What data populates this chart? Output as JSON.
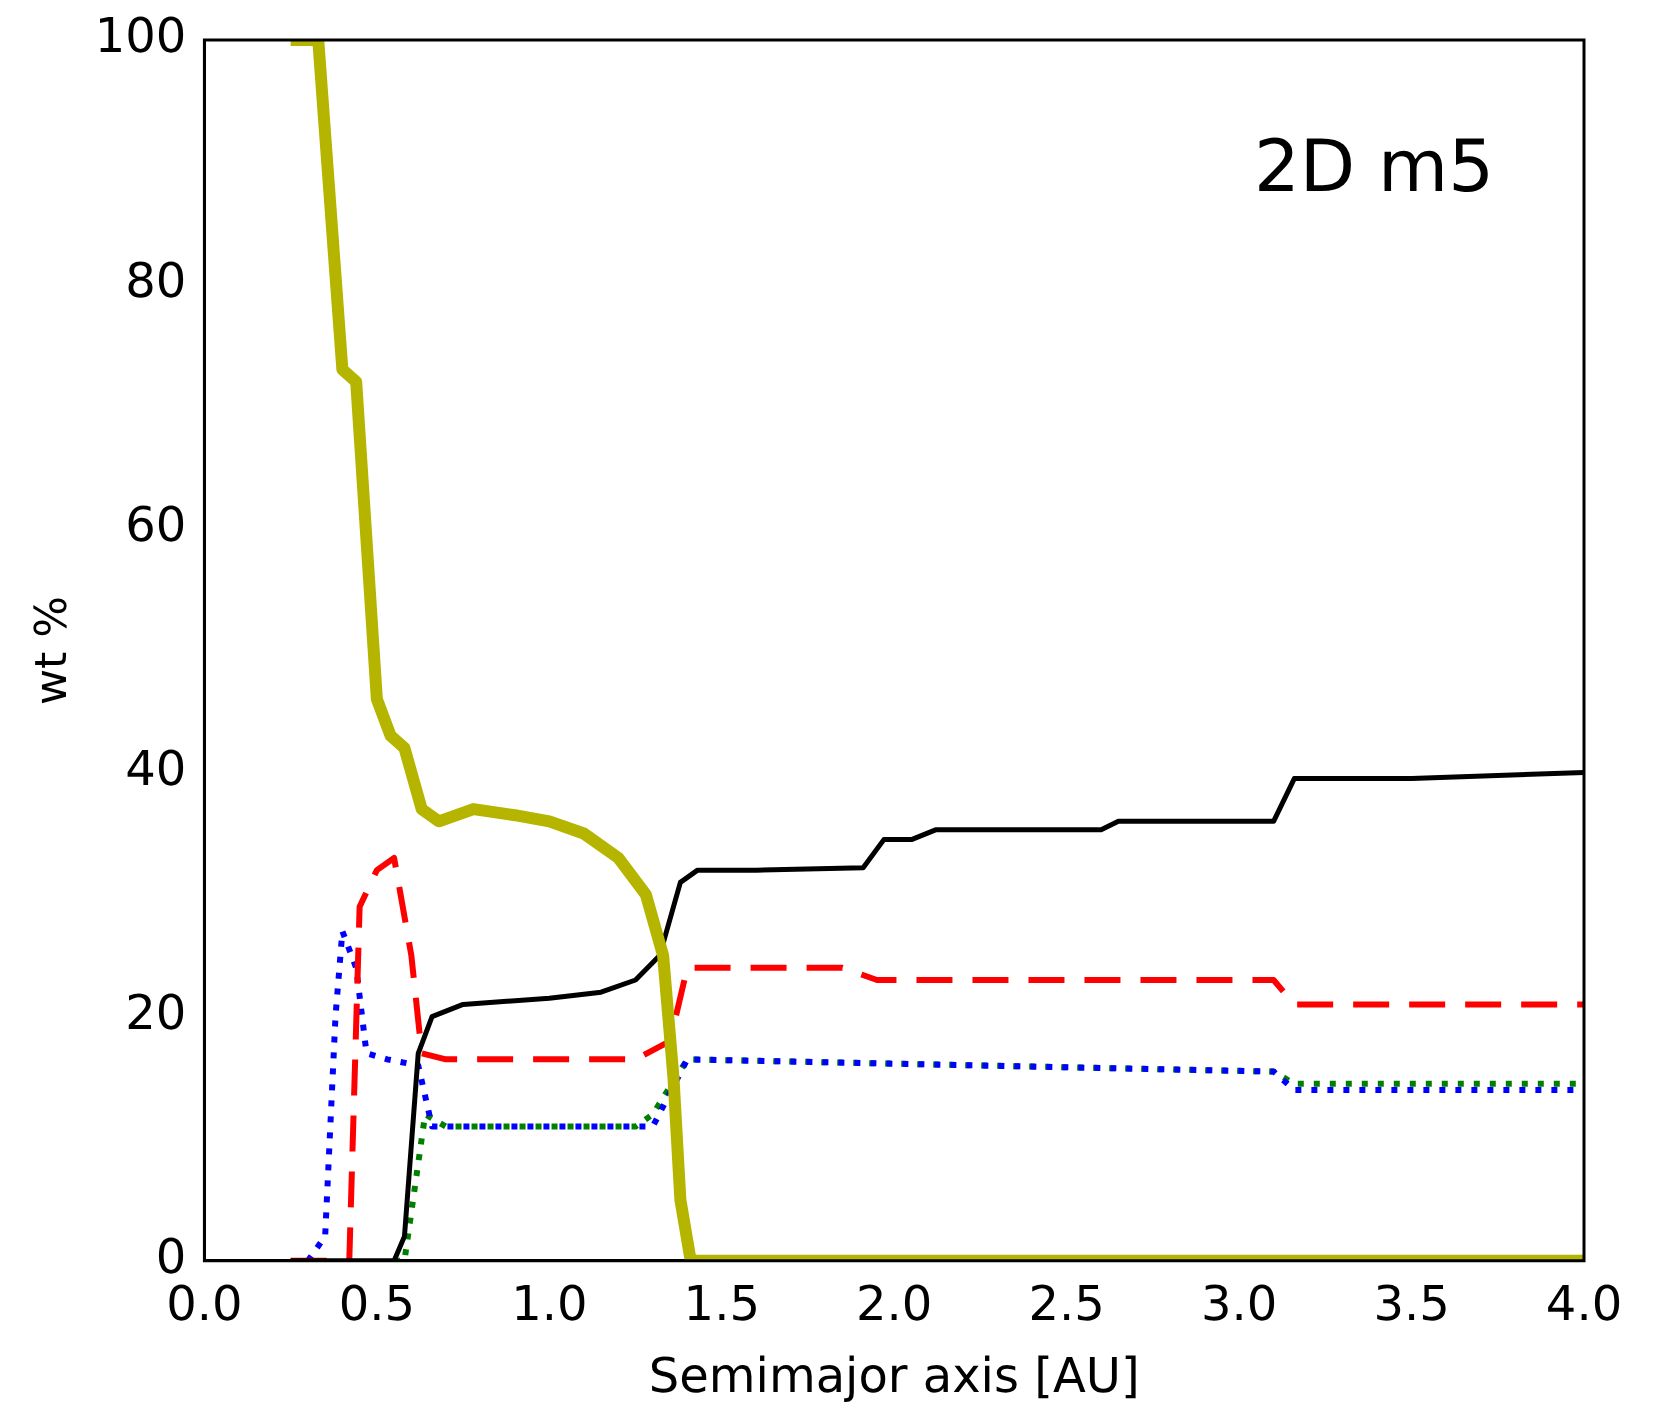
{
  "chart_data": {
    "type": "line",
    "xlabel": "Semimajor axis [AU]",
    "ylabel": "wt %",
    "annotations": [
      "2D m5"
    ],
    "xlim": [
      0,
      4
    ],
    "xticks": [
      {
        "value": 0,
        "label": "0.0"
      },
      {
        "value": 0.5,
        "label": "0.5"
      },
      {
        "value": 1,
        "label": "1.0"
      },
      {
        "value": 1.5,
        "label": "1.5"
      },
      {
        "value": 2,
        "label": "2.0"
      },
      {
        "value": 2.5,
        "label": "2.5"
      },
      {
        "value": 3,
        "label": "3.0"
      },
      {
        "value": 3.5,
        "label": "3.5"
      },
      {
        "value": 4,
        "label": "4.0"
      }
    ],
    "ylim": [
      0,
      100
    ],
    "yticks": [
      0,
      20,
      40,
      60,
      80,
      100
    ],
    "grid": false,
    "legend": false,
    "marker": "none",
    "series": [
      {
        "color": "#b5b500",
        "line_style": "solid",
        "x": [
          0.25,
          0.33,
          0.4,
          0.44,
          0.5,
          0.54,
          0.58,
          0.63,
          0.68,
          0.78,
          0.9,
          1.0,
          1.1,
          1.2,
          1.28,
          1.33,
          1.36,
          1.38,
          1.41,
          4.0
        ],
        "values": [
          100,
          100,
          73,
          72,
          46,
          43,
          42,
          37,
          36,
          37,
          36.5,
          36,
          35,
          33,
          30,
          25,
          15,
          5,
          0,
          0
        ]
      },
      {
        "color": "#000000",
        "line_style": "solid",
        "x": [
          0.25,
          0.55,
          0.58,
          0.62,
          0.66,
          0.75,
          1.0,
          1.15,
          1.25,
          1.32,
          1.38,
          1.43,
          1.6,
          1.91,
          1.97,
          2.05,
          2.12,
          2.6,
          2.65,
          3.1,
          3.16,
          3.5,
          4.0
        ],
        "values": [
          0,
          0,
          2,
          17,
          20,
          21,
          21.5,
          22,
          23,
          25,
          31,
          32,
          32,
          32.2,
          34.5,
          34.5,
          35.3,
          35.3,
          36,
          36,
          39.5,
          39.5,
          40
        ]
      },
      {
        "color": "#ff0000",
        "line_style": "dashed",
        "x": [
          0.25,
          0.42,
          0.45,
          0.5,
          0.55,
          0.6,
          0.63,
          0.7,
          1.25,
          1.35,
          1.4,
          1.85,
          1.95,
          3.1,
          3.16,
          4.0
        ],
        "values": [
          0,
          0,
          29,
          32,
          33,
          25,
          17,
          16.5,
          16.5,
          18,
          24,
          24,
          23,
          23,
          21,
          21
        ]
      },
      {
        "color": "#0000ff",
        "line_style": "dotted",
        "x": [
          0.3,
          0.35,
          0.38,
          0.4,
          0.44,
          0.47,
          0.53,
          0.62,
          0.66,
          1.3,
          1.4,
          3.1,
          3.16,
          4.0
        ],
        "values": [
          0,
          2,
          20,
          27,
          24,
          17,
          16.5,
          16,
          11,
          11,
          16.5,
          15.5,
          14,
          14
        ]
      },
      {
        "color": "#008000",
        "line_style": "dotted",
        "x": [
          0.55,
          0.58,
          0.64,
          0.7,
          1.25,
          1.3,
          1.4,
          3.1,
          3.16,
          4.0
        ],
        "values": [
          0,
          0,
          12,
          11,
          11,
          12,
          16.5,
          15.5,
          14.5,
          14.5
        ]
      }
    ]
  }
}
